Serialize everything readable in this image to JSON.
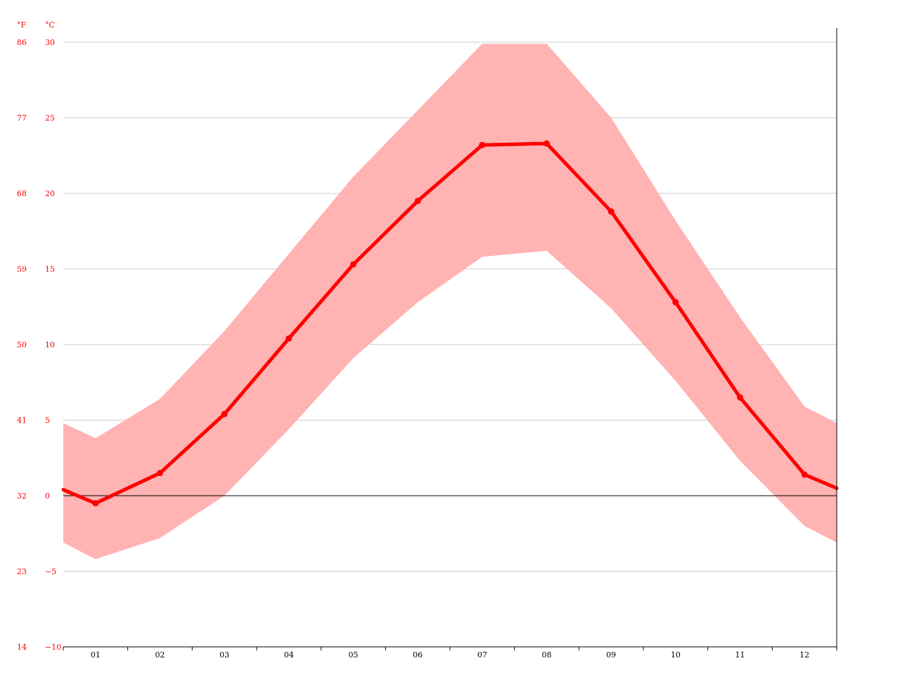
{
  "chart_data": {
    "type": "line",
    "title": "",
    "xlabel": "",
    "ylabel": "",
    "units": {
      "fahrenheit": "°F",
      "celsius": "°C"
    },
    "categories": [
      "01",
      "02",
      "03",
      "04",
      "05",
      "06",
      "07",
      "08",
      "09",
      "10",
      "11",
      "12"
    ],
    "series": [
      {
        "values": [
          -0.5,
          1.5,
          5.4,
          10.4,
          15.3,
          19.5,
          23.2,
          23.3,
          18.8,
          12.8,
          6.5,
          1.4
        ]
      }
    ],
    "band": {
      "low": [
        -4.2,
        -2.8,
        0.0,
        4.4,
        9.1,
        12.8,
        15.8,
        16.2,
        12.4,
        7.6,
        2.3,
        -2.0
      ],
      "high": [
        3.8,
        6.4,
        10.9,
        16.0,
        21.1,
        25.5,
        29.9,
        29.9,
        25.0,
        18.2,
        11.8,
        5.9
      ]
    },
    "boundary_values": {
      "start": 0.4,
      "end": 0.5,
      "low_start": -3.1,
      "low_end": -3.1,
      "high_start": 4.8,
      "high_end": 4.8
    },
    "ylim": [
      -10,
      30
    ],
    "yticks_celsius": [
      "−10",
      "−5",
      "0",
      "5",
      "10",
      "15",
      "20",
      "25",
      "30"
    ],
    "yticks_fahrenheit": [
      "14",
      "23",
      "32",
      "41",
      "50",
      "59",
      "68",
      "77",
      "86"
    ],
    "grid": true,
    "legend": "none",
    "colors": {
      "line": "#ff0000",
      "band": "#ffb3b3",
      "axis_text": "#ff0000",
      "grid": "#cccccc",
      "zero_line": "#000000",
      "x_text": "#000000"
    }
  }
}
